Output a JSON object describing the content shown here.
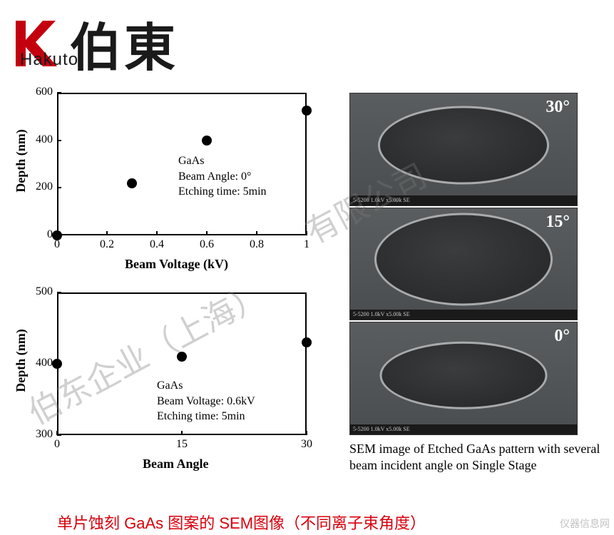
{
  "logo": {
    "brand_cn": "伯東",
    "brand_en": "Hakuto",
    "accent_color": "#c4000f"
  },
  "chart1": {
    "type": "scatter",
    "xlabel": "Beam Voltage (kV)",
    "ylabel": "Depth (nm)",
    "xlim": [
      0,
      1.0
    ],
    "ylim": [
      0,
      600
    ],
    "xticks": [
      0,
      0.2,
      0.4,
      0.6,
      0.8,
      1.0
    ],
    "yticks": [
      0,
      200,
      400,
      600
    ],
    "points": [
      {
        "x": 0.0,
        "y": 0
      },
      {
        "x": 0.3,
        "y": 220
      },
      {
        "x": 0.6,
        "y": 400
      },
      {
        "x": 1.0,
        "y": 525
      }
    ],
    "anno_lines": [
      "GaAs",
      "Beam Angle: 0°",
      "Etching time: 5min"
    ],
    "marker_color": "#000000",
    "marker_size": 14,
    "axis_color": "#000000",
    "label_fontsize": 18,
    "tick_fontsize": 16
  },
  "chart2": {
    "type": "scatter",
    "xlabel": "Beam Angle",
    "ylabel": "Depth (nm)",
    "xlim": [
      0,
      30
    ],
    "ylim": [
      300,
      500
    ],
    "xticks": [
      0,
      15,
      30
    ],
    "yticks": [
      300,
      400,
      500
    ],
    "points": [
      {
        "x": 0,
        "y": 400
      },
      {
        "x": 15,
        "y": 410
      },
      {
        "x": 30,
        "y": 430
      }
    ],
    "anno_lines": [
      "GaAs",
      "Beam Voltage: 0.6kV",
      "Etching time: 5min"
    ],
    "marker_color": "#000000",
    "marker_size": 14,
    "axis_color": "#000000",
    "label_fontsize": 18,
    "tick_fontsize": 16
  },
  "sem": {
    "caption": "SEM image of Etched GaAs pattern with several beam incident angle on Single Stage",
    "images": [
      {
        "angle": "30°",
        "disc_w": 240,
        "disc_h": 110,
        "bar": "5-5200 1.0kV x5.00k SE"
      },
      {
        "angle": "15°",
        "disc_w": 250,
        "disc_h": 130,
        "bar": "5-5200 1.0kV x5.00k SE"
      },
      {
        "angle": "0°",
        "disc_w": 235,
        "disc_h": 95,
        "bar": "5-5200 1.0kV x5.00k SE"
      }
    ],
    "bg_color": "#525456",
    "disc_color": "#2f3133",
    "rim_color": "#a8aaac",
    "label_color": "#ffffff"
  },
  "bottom_caption": "单片蚀刻 GaAs 图案的 SEM图像（不同离子束角度）",
  "bottom_caption_color": "#d8000c",
  "watermark": {
    "text1": "伯东企业（上海）",
    "text2": "有限公司",
    "footer": "仪器信息网"
  }
}
